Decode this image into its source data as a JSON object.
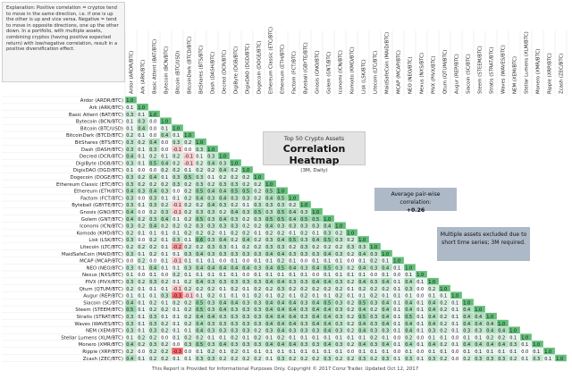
{
  "explanation": "Explanation: Positive correlation = cryptos tend to move in the same direction, i.e. if one is up the other is up and vice versa. Negative = tend to move in opposite directions, one up the other down. In a portfolio, with multiple assets, combining cryptos (having positive expected return) with low/negative correlation, result in a positive diversification effect.",
  "chart_title_small": "Top 50 Crypto Assets",
  "chart_title": "Correlation Heatmap",
  "chart_subtitle": "(3M, Daily)",
  "average_label": "Average pair-wise correlation:",
  "average_value": "+0.26",
  "note": "Multiple assets excluded due to short time series; 3M required.",
  "footer": "This Report is Provided for Informational Purposes Only. Copyright © 2017 Coinz Trader. Updated Oct 12, 2017",
  "colors": {
    "high": "#63be7b",
    "mid": "#fcfcff",
    "low": "#f8696b"
  },
  "chart_data": {
    "type": "heatmap",
    "title": "Correlation Heatmap",
    "assets": [
      "Ardor (ARDR/BTC)",
      "Ark (ARK/BTC)",
      "Basic Attent (BAT/BTC)",
      "Bytecoin (BCN/BTC)",
      "Bitcoin (BTC/USD)",
      "BitcoinDark (BTCD/BTC)",
      "BitShares (BTS/BTC)",
      "Dash (DASH/BTC)",
      "Decred (DCR/BTC)",
      "DigiByte (DGB/BTC)",
      "DigixDAO (DGD/BTC)",
      "Dogecoin (DOGE/BTC)",
      "Ethereum Classic (ETC/BTC)",
      "Ethereum (ETH/BTC)",
      "Factom (FCT/BTC)",
      "Byteball (GBYTE/BTC)",
      "Gnosis (GNO/BTC)",
      "Golem (GNT/BTC)",
      "Iconomi (ICN/BTC)",
      "Komodo (KMD/BTC)",
      "Lisk (LSK/BTC)",
      "Litecoin (LTC/BTC)",
      "MaidSafeCoin (MAID/BTC)",
      "MCAP (MCAP/BTC)",
      "NEO (NEO/BTC)",
      "Nexus (NXS/BTC)",
      "PIVX (PIVX/BTC)",
      "Qtum (QTUM/BTC)",
      "Augur (REP/BTC)",
      "Siacoin (SC/BTC)",
      "Steem (STEEM/BTC)",
      "Stratis (STRAT/BTC)",
      "Waves (WAVES/BTC)",
      "NEM (XEM/BTC)",
      "Stellar Lumens (XLM/BTC)",
      "Monero (XMR/BTC)",
      "Ripple (XRP/BTC)",
      "Zcash (ZEC/BTC)"
    ],
    "values": [
      [
        1.0
      ],
      [
        0.1,
        1.0
      ],
      [
        0.3,
        0.1,
        1.0
      ],
      [
        0.1,
        0.3,
        0.0,
        1.0
      ],
      [
        0.1,
        0.4,
        0.0,
        0.1,
        1.0
      ],
      [
        0.2,
        0.1,
        0.0,
        0.4,
        0.1,
        1.0
      ],
      [
        0.3,
        0.2,
        0.4,
        0.0,
        0.3,
        0.2,
        1.0
      ],
      [
        0.3,
        0.1,
        0.3,
        0.0,
        -0.1,
        0.0,
        0.3,
        1.0
      ],
      [
        0.4,
        0.1,
        0.2,
        0.1,
        0.2,
        -0.1,
        0.1,
        0.3,
        1.0
      ],
      [
        0.3,
        0.1,
        0.5,
        0.4,
        0.2,
        -0.1,
        0.2,
        0.4,
        0.3,
        1.0
      ],
      [
        0.1,
        0.0,
        0.0,
        0.2,
        0.2,
        0.1,
        0.2,
        0.2,
        0.4,
        0.2,
        1.0
      ],
      [
        0.3,
        0.2,
        0.4,
        0.1,
        0.3,
        0.5,
        0.3,
        0.1,
        0.2,
        0.2,
        0.2,
        1.0
      ],
      [
        0.3,
        0.2,
        0.2,
        0.2,
        0.3,
        0.2,
        0.3,
        0.2,
        0.3,
        0.3,
        0.2,
        0.2,
        1.0
      ],
      [
        0.4,
        0.3,
        0.4,
        0.3,
        0.0,
        0.2,
        0.5,
        0.4,
        0.4,
        0.5,
        0.5,
        0.2,
        0.5,
        1.0
      ],
      [
        0.3,
        0.0,
        0.3,
        0.1,
        0.1,
        0.2,
        0.4,
        0.3,
        0.4,
        0.3,
        0.3,
        0.2,
        0.4,
        0.5,
        1.0
      ],
      [
        0.3,
        0.1,
        0.3,
        0.2,
        -0.1,
        0.2,
        0.2,
        0.4,
        0.3,
        0.2,
        0.1,
        0.3,
        0.3,
        0.3,
        0.2,
        1.0
      ],
      [
        0.4,
        0.0,
        0.2,
        0.3,
        -0.1,
        0.2,
        0.3,
        0.3,
        0.2,
        0.4,
        0.3,
        0.5,
        0.3,
        0.5,
        0.4,
        0.3,
        1.0
      ],
      [
        0.4,
        0.2,
        0.3,
        0.4,
        0.1,
        0.2,
        0.5,
        0.3,
        0.4,
        0.3,
        0.2,
        0.3,
        0.5,
        0.5,
        0.4,
        0.5,
        0.5,
        1.0
      ],
      [
        0.3,
        0.2,
        0.4,
        0.2,
        0.2,
        0.2,
        0.3,
        0.3,
        0.3,
        0.3,
        0.2,
        0.2,
        0.4,
        0.3,
        0.3,
        0.3,
        0.3,
        0.4,
        1.0
      ],
      [
        0.2,
        0.1,
        0.1,
        0.1,
        0.1,
        0.2,
        0.2,
        0.2,
        0.1,
        0.2,
        0.2,
        0.1,
        0.2,
        0.2,
        0.1,
        0.2,
        0.1,
        0.3,
        0.2,
        1.0
      ],
      [
        0.3,
        0.0,
        0.2,
        0.1,
        0.3,
        0.1,
        0.6,
        0.3,
        0.4,
        0.2,
        0.4,
        0.2,
        0.3,
        0.4,
        0.5,
        0.3,
        0.4,
        0.5,
        0.3,
        0.2,
        1.0
      ],
      [
        0.2,
        0.2,
        0.2,
        0.1,
        -0.2,
        0.2,
        0.2,
        0.3,
        0.3,
        0.1,
        0.2,
        0.2,
        0.3,
        0.3,
        0.2,
        0.3,
        0.2,
        0.2,
        0.2,
        0.3,
        0.3,
        1.0
      ],
      [
        0.3,
        0.1,
        0.2,
        0.1,
        0.1,
        0.3,
        0.4,
        0.3,
        0.3,
        0.3,
        0.3,
        0.3,
        0.4,
        0.4,
        0.3,
        0.3,
        0.3,
        0.4,
        0.3,
        0.2,
        0.4,
        0.3,
        1.0
      ],
      [
        0.0,
        0.2,
        0.0,
        0.1,
        -0.1,
        0.1,
        0.1,
        0.1,
        0.0,
        0.1,
        0.0,
        0.1,
        0.1,
        0.2,
        0.1,
        0.0,
        0.1,
        0.1,
        0.1,
        0.0,
        0.1,
        0.2,
        0.1,
        1.0
      ],
      [
        0.3,
        0.1,
        0.4,
        0.1,
        0.1,
        0.3,
        0.4,
        0.4,
        0.4,
        0.4,
        0.4,
        0.3,
        0.4,
        0.5,
        0.4,
        0.3,
        0.4,
        0.5,
        0.3,
        0.2,
        0.4,
        0.3,
        0.4,
        0.1,
        1.0
      ],
      [
        0.1,
        0.0,
        0.1,
        0.0,
        0.2,
        0.1,
        0.1,
        0.1,
        0.1,
        0.1,
        0.0,
        0.1,
        0.1,
        0.1,
        0.1,
        0.1,
        0.0,
        0.1,
        0.1,
        0.1,
        0.1,
        0.0,
        0.1,
        0.0,
        0.1,
        1.0
      ],
      [
        0.3,
        0.2,
        0.3,
        0.2,
        0.1,
        0.2,
        0.4,
        0.3,
        0.3,
        0.3,
        0.3,
        0.3,
        0.4,
        0.4,
        0.3,
        0.3,
        0.4,
        0.4,
        0.3,
        0.2,
        0.4,
        0.3,
        0.4,
        0.1,
        0.4,
        0.1,
        1.0
      ],
      [
        0.2,
        0.1,
        0.1,
        0.1,
        -0.1,
        0.2,
        0.2,
        0.2,
        0.1,
        0.2,
        0.1,
        0.2,
        0.2,
        0.3,
        0.2,
        0.2,
        0.2,
        0.2,
        0.2,
        0.1,
        0.2,
        0.2,
        0.2,
        0.1,
        0.3,
        0.0,
        0.2,
        1.0
      ],
      [
        0.1,
        0.1,
        0.1,
        0.3,
        -0.3,
        -0.1,
        0.1,
        0.2,
        0.1,
        0.1,
        0.1,
        0.2,
        0.1,
        0.2,
        0.1,
        0.2,
        0.1,
        0.1,
        0.2,
        0.1,
        0.1,
        0.2,
        0.1,
        0.1,
        0.1,
        0.0,
        0.1,
        0.1,
        1.0
      ],
      [
        0.4,
        0.1,
        0.2,
        0.1,
        0.2,
        0.2,
        0.5,
        0.3,
        0.4,
        0.4,
        0.3,
        0.3,
        0.4,
        0.4,
        0.4,
        0.3,
        0.4,
        0.5,
        0.3,
        0.2,
        0.5,
        0.3,
        0.4,
        0.1,
        0.4,
        0.1,
        0.4,
        0.2,
        0.1,
        1.0
      ],
      [
        0.5,
        0.1,
        0.2,
        0.2,
        0.1,
        0.2,
        0.5,
        0.3,
        0.4,
        0.3,
        0.3,
        0.3,
        0.4,
        0.4,
        0.4,
        0.3,
        0.4,
        0.4,
        0.3,
        0.2,
        0.4,
        0.2,
        0.4,
        0.1,
        0.4,
        0.1,
        0.4,
        0.2,
        0.1,
        0.4,
        1.0
      ],
      [
        0.3,
        0.1,
        0.3,
        0.1,
        0.1,
        0.2,
        0.4,
        0.4,
        0.3,
        0.3,
        0.3,
        0.3,
        0.4,
        0.4,
        0.4,
        0.3,
        0.4,
        0.4,
        0.3,
        0.2,
        0.5,
        0.3,
        0.4,
        0.1,
        0.5,
        0.1,
        0.4,
        0.2,
        0.1,
        0.4,
        0.4,
        1.0
      ],
      [
        0.3,
        0.1,
        0.3,
        0.2,
        0.1,
        0.2,
        0.4,
        0.3,
        0.3,
        0.3,
        0.3,
        0.3,
        0.4,
        0.4,
        0.4,
        0.3,
        0.4,
        0.4,
        0.3,
        0.2,
        0.4,
        0.3,
        0.4,
        0.1,
        0.4,
        0.1,
        0.4,
        0.2,
        0.1,
        0.4,
        0.4,
        0.4,
        1.0
      ],
      [
        0.3,
        0.1,
        0.3,
        0.2,
        0.1,
        0.1,
        0.4,
        0.3,
        0.3,
        0.3,
        0.3,
        0.2,
        0.3,
        0.4,
        0.3,
        0.3,
        0.3,
        0.4,
        0.3,
        0.2,
        0.4,
        0.3,
        0.3,
        0.1,
        0.4,
        0.1,
        0.3,
        0.2,
        0.1,
        0.3,
        0.3,
        0.4,
        0.4,
        1.0
      ],
      [
        0.1,
        0.2,
        0.2,
        0.0,
        0.1,
        0.2,
        0.2,
        0.1,
        0.1,
        0.2,
        0.1,
        0.2,
        0.1,
        0.2,
        0.1,
        0.1,
        0.1,
        0.1,
        0.1,
        0.1,
        0.1,
        0.2,
        0.1,
        0.0,
        0.2,
        0.0,
        0.1,
        0.1,
        0.0,
        0.1,
        0.1,
        0.2,
        0.2,
        0.1,
        1.0
      ],
      [
        0.4,
        0.2,
        0.3,
        0.2,
        0.0,
        0.3,
        0.5,
        0.3,
        0.4,
        0.3,
        0.3,
        0.3,
        0.4,
        0.4,
        0.4,
        0.3,
        0.3,
        0.4,
        0.3,
        0.2,
        0.4,
        0.3,
        0.4,
        0.1,
        0.4,
        0.1,
        0.4,
        0.2,
        0.1,
        0.4,
        0.4,
        0.4,
        0.4,
        0.3,
        0.1,
        1.0
      ],
      [
        0.2,
        0.0,
        0.2,
        0.2,
        -0.3,
        0.0,
        0.1,
        0.2,
        0.1,
        0.2,
        0.1,
        0.1,
        0.1,
        0.1,
        0.1,
        0.1,
        0.1,
        0.1,
        0.1,
        0.0,
        0.1,
        0.1,
        0.1,
        0.0,
        0.1,
        0.0,
        0.1,
        0.1,
        0.0,
        0.1,
        0.1,
        0.1,
        0.1,
        0.1,
        0.0,
        0.1,
        1.0
      ],
      [
        0.4,
        0.1,
        0.2,
        0.2,
        0.1,
        0.1,
        0.3,
        0.3,
        0.2,
        0.2,
        0.2,
        0.2,
        0.1,
        0.3,
        0.2,
        0.2,
        0.2,
        0.3,
        0.2,
        0.2,
        0.3,
        0.2,
        0.3,
        0.1,
        0.3,
        0.1,
        0.3,
        0.2,
        0.0,
        0.2,
        0.3,
        0.3,
        0.3,
        0.2,
        0.1,
        0.3,
        0.1,
        1.0
      ]
    ]
  }
}
